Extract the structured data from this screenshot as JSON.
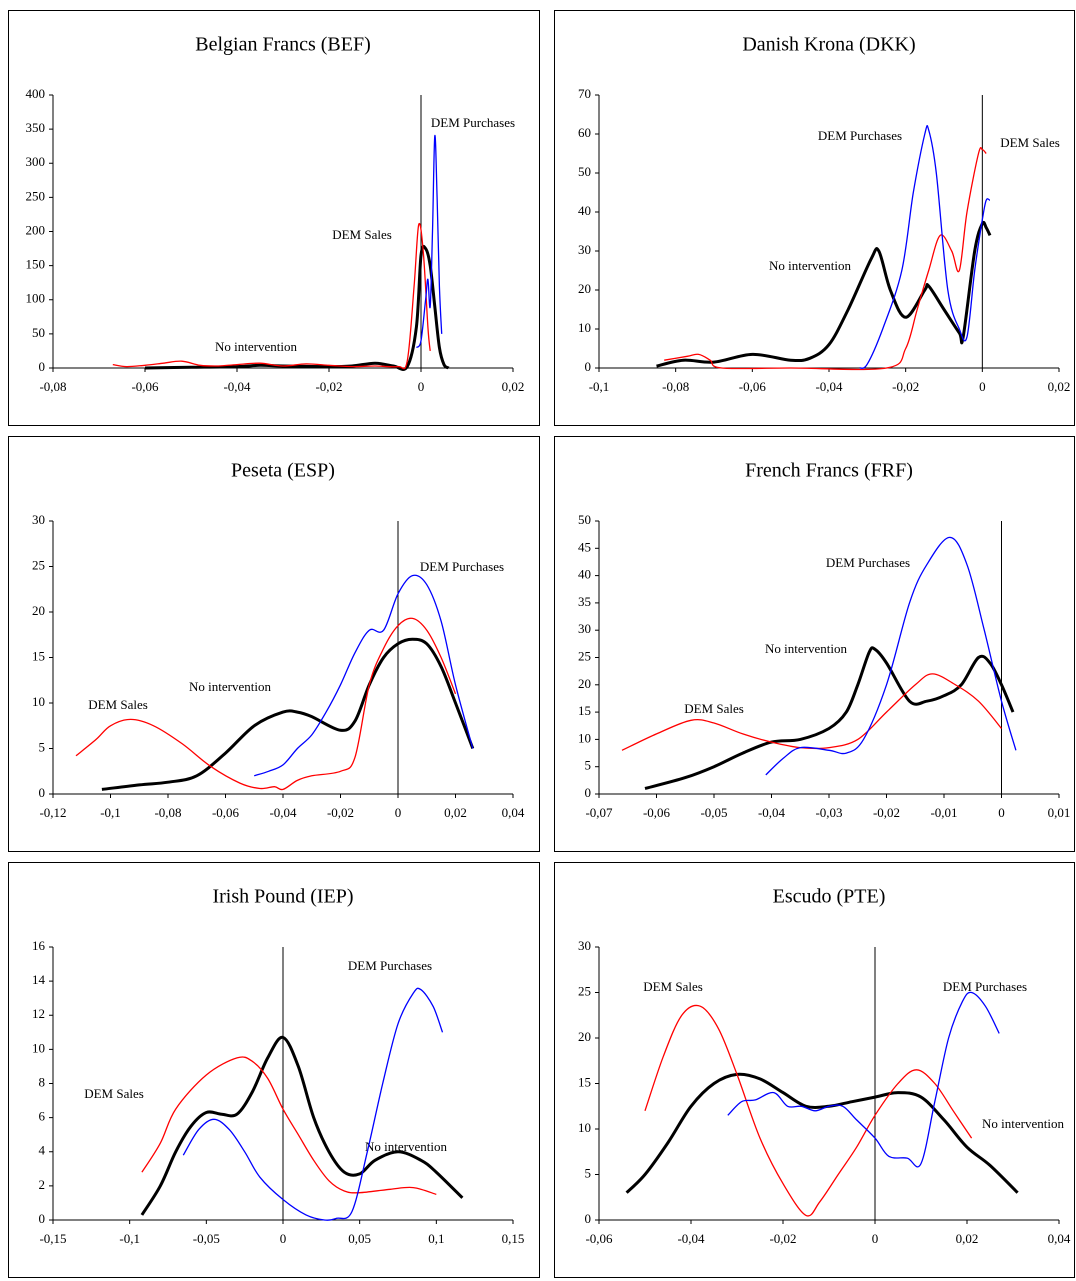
{
  "chart_data": [
    {
      "type": "line",
      "title": "Belgian Francs (BEF)",
      "xlim": [
        -0.08,
        0.02
      ],
      "xticks": [
        {
          "value": -0.08,
          "label": "-0,08"
        },
        {
          "value": -0.06,
          "label": "-0,06"
        },
        {
          "value": -0.04,
          "label": "-0,04"
        },
        {
          "value": -0.02,
          "label": "-0,02"
        },
        0,
        {
          "value": 0.02,
          "label": "0,02"
        }
      ],
      "ylim": [
        0,
        400
      ],
      "yticks": [
        0,
        50,
        100,
        150,
        200,
        250,
        300,
        350,
        400
      ],
      "series": [
        {
          "name": "No intervention",
          "color": "#000000",
          "x": [
            -0.06,
            -0.05,
            -0.04,
            -0.035,
            -0.03,
            -0.02,
            -0.015,
            -0.01,
            -0.006,
            -0.003,
            -0.001,
            0,
            0.001,
            0.002,
            0.003,
            0.004,
            0.005,
            0.006
          ],
          "values": [
            0,
            1,
            2,
            4,
            3,
            2,
            3,
            7,
            3,
            2,
            60,
            165,
            175,
            150,
            90,
            30,
            5,
            0
          ]
        },
        {
          "name": "DEM Sales",
          "color": "#ff0000",
          "x": [
            -0.067,
            -0.064,
            -0.06,
            -0.056,
            -0.052,
            -0.048,
            -0.044,
            -0.04,
            -0.035,
            -0.03,
            -0.025,
            -0.02,
            -0.015,
            -0.01,
            -0.005,
            -0.003,
            -0.0015,
            -0.0005,
            0.0005,
            0.0015,
            0.002
          ],
          "values": [
            5,
            2,
            4,
            7,
            10,
            4,
            3,
            5,
            7,
            3,
            6,
            4,
            2,
            3,
            2,
            10,
            120,
            210,
            170,
            60,
            25
          ]
        },
        {
          "name": "DEM Purchases",
          "color": "#0000ff",
          "x": [
            -0.001,
            0,
            0.001,
            0.0015,
            0.002,
            0.0025,
            0.003,
            0.0035,
            0.004,
            0.0045
          ],
          "values": [
            30,
            40,
            100,
            130,
            90,
            200,
            340,
            250,
            120,
            50
          ]
        }
      ]
    },
    {
      "type": "line",
      "title": "Danish Krona (DKK)",
      "xlim": [
        -0.1,
        0.02
      ],
      "xticks": [
        {
          "value": -0.1,
          "label": "-0,1"
        },
        {
          "value": -0.08,
          "label": "-0,08"
        },
        {
          "value": -0.06,
          "label": "-0,06"
        },
        {
          "value": -0.04,
          "label": "-0,04"
        },
        {
          "value": -0.02,
          "label": "-0,02"
        },
        0,
        {
          "value": 0.02,
          "label": "0,02"
        }
      ],
      "ylim": [
        0,
        70
      ],
      "yticks": [
        0,
        10,
        20,
        30,
        40,
        50,
        60,
        70
      ],
      "series": [
        {
          "name": "No intervention",
          "color": "#000000",
          "x": [
            -0.085,
            -0.078,
            -0.07,
            -0.06,
            -0.05,
            -0.045,
            -0.04,
            -0.035,
            -0.029,
            -0.027,
            -0.024,
            -0.02,
            -0.015,
            -0.014,
            -0.01,
            -0.006,
            -0.005,
            -0.002,
            0,
            0.001,
            0.002
          ],
          "values": [
            0.5,
            2,
            1.5,
            3.5,
            2,
            2.5,
            6,
            15,
            28,
            30,
            20,
            13,
            20,
            21,
            15,
            9,
            8,
            30,
            37,
            36,
            34
          ]
        },
        {
          "name": "DEM Sales",
          "color": "#ff0000",
          "x": [
            -0.083,
            -0.077,
            -0.074,
            -0.071,
            -0.068,
            -0.05,
            -0.025,
            -0.02,
            -0.017,
            -0.014,
            -0.011,
            -0.008,
            -0.006,
            -0.004,
            -0.001,
            0,
            0.001
          ],
          "values": [
            2,
            3,
            3.5,
            2,
            0,
            0,
            0,
            5,
            15,
            25,
            34,
            30,
            25,
            40,
            55,
            56,
            55
          ]
        },
        {
          "name": "DEM Purchases",
          "color": "#0000ff",
          "x": [
            -0.032,
            -0.03,
            -0.026,
            -0.021,
            -0.018,
            -0.015,
            -0.014,
            -0.012,
            -0.009,
            -0.006,
            -0.004,
            -0.002,
            0,
            0.001,
            0.002
          ],
          "values": [
            0,
            1,
            10,
            25,
            45,
            60,
            61,
            50,
            20,
            10,
            8,
            25,
            38,
            43,
            43
          ]
        }
      ]
    },
    {
      "type": "line",
      "title": "Peseta (ESP)",
      "xlim": [
        -0.12,
        0.04
      ],
      "xticks": [
        {
          "value": -0.12,
          "label": "-0,12"
        },
        {
          "value": -0.1,
          "label": "-0,1"
        },
        {
          "value": -0.08,
          "label": "-0,08"
        },
        {
          "value": -0.06,
          "label": "-0,06"
        },
        {
          "value": -0.04,
          "label": "-0,04"
        },
        {
          "value": -0.02,
          "label": "-0,02"
        },
        0,
        {
          "value": 0.02,
          "label": "0,02"
        },
        {
          "value": 0.04,
          "label": "0,04"
        }
      ],
      "ylim": [
        0,
        30
      ],
      "yticks": [
        0,
        5,
        10,
        15,
        20,
        25,
        30
      ],
      "series": [
        {
          "name": "No intervention",
          "color": "#000000",
          "x": [
            -0.103,
            -0.09,
            -0.08,
            -0.07,
            -0.06,
            -0.05,
            -0.04,
            -0.035,
            -0.03,
            -0.02,
            -0.015,
            -0.01,
            -0.005,
            0,
            0.005,
            0.01,
            0.015,
            0.02,
            0.026
          ],
          "values": [
            0.5,
            1,
            1.3,
            2,
            4.5,
            7.5,
            9,
            9,
            8.5,
            7,
            8,
            12,
            15,
            16.5,
            17,
            16.5,
            14,
            10,
            5
          ]
        },
        {
          "name": "DEM Sales",
          "color": "#ff0000",
          "x": [
            -0.112,
            -0.105,
            -0.1,
            -0.093,
            -0.085,
            -0.075,
            -0.065,
            -0.055,
            -0.048,
            -0.043,
            -0.04,
            -0.035,
            -0.03,
            -0.02,
            -0.015,
            -0.01,
            -0.005,
            0,
            0.005,
            0.01,
            0.015,
            0.02
          ],
          "values": [
            4.2,
            6,
            7.5,
            8.2,
            7.5,
            5.5,
            3,
            1.2,
            0.6,
            0.8,
            0.5,
            1.5,
            2,
            2.5,
            4,
            12,
            16,
            18.5,
            19.3,
            18,
            15,
            11
          ]
        },
        {
          "name": "DEM Purchases",
          "color": "#0000ff",
          "x": [
            -0.05,
            -0.045,
            -0.04,
            -0.035,
            -0.03,
            -0.025,
            -0.02,
            -0.015,
            -0.01,
            -0.005,
            0,
            0.005,
            0.01,
            0.015,
            0.02,
            0.026
          ],
          "values": [
            2,
            2.5,
            3.2,
            5,
            6.5,
            9,
            12,
            15.5,
            18,
            18,
            22,
            24,
            23,
            19,
            12,
            5
          ]
        }
      ]
    },
    {
      "type": "line",
      "title": "French Francs (FRF)",
      "xlim": [
        -0.07,
        0.01
      ],
      "xticks": [
        {
          "value": -0.07,
          "label": "-0,07"
        },
        {
          "value": -0.06,
          "label": "-0,06"
        },
        {
          "value": -0.05,
          "label": "-0,05"
        },
        {
          "value": -0.04,
          "label": "-0,04"
        },
        {
          "value": -0.03,
          "label": "-0,03"
        },
        {
          "value": -0.02,
          "label": "-0,02"
        },
        {
          "value": -0.01,
          "label": "-0,01"
        },
        0,
        {
          "value": 0.01,
          "label": "0,01"
        }
      ],
      "ylim": [
        0,
        50
      ],
      "yticks": [
        0,
        5,
        10,
        15,
        20,
        25,
        30,
        35,
        40,
        45,
        50
      ],
      "series": [
        {
          "name": "No intervention",
          "color": "#000000",
          "x": [
            -0.062,
            -0.055,
            -0.05,
            -0.045,
            -0.04,
            -0.035,
            -0.03,
            -0.027,
            -0.025,
            -0.023,
            -0.022,
            -0.02,
            -0.016,
            -0.013,
            -0.01,
            -0.007,
            -0.004,
            -0.002,
            0,
            0.002
          ],
          "values": [
            1,
            3,
            5,
            7.5,
            9.5,
            10,
            12,
            15,
            20,
            26,
            26.5,
            24,
            17,
            17,
            18,
            20,
            25,
            24,
            20,
            15
          ]
        },
        {
          "name": "DEM Sales",
          "color": "#ff0000",
          "x": [
            -0.066,
            -0.06,
            -0.054,
            -0.05,
            -0.045,
            -0.04,
            -0.035,
            -0.03,
            -0.025,
            -0.02,
            -0.015,
            -0.012,
            -0.008,
            -0.004,
            0
          ],
          "values": [
            8,
            11,
            13.5,
            13,
            11,
            9.5,
            8.5,
            8.5,
            10,
            15,
            20,
            22,
            20,
            17,
            12
          ]
        },
        {
          "name": "DEM Purchases",
          "color": "#0000ff",
          "x": [
            -0.041,
            -0.038,
            -0.035,
            -0.03,
            -0.027,
            -0.024,
            -0.02,
            -0.016,
            -0.013,
            -0.009,
            -0.006,
            -0.003,
            0,
            0.0025
          ],
          "values": [
            3.5,
            6.5,
            8.5,
            8,
            7.5,
            10,
            20,
            35,
            42,
            47,
            42,
            30,
            17,
            8
          ]
        }
      ]
    },
    {
      "type": "line",
      "title": "Irish Pound (IEP)",
      "xlim": [
        -0.15,
        0.15
      ],
      "xticks": [
        {
          "value": -0.15,
          "label": "-0,15"
        },
        {
          "value": -0.1,
          "label": "-0,1"
        },
        {
          "value": -0.05,
          "label": "-0,05"
        },
        0,
        {
          "value": 0.05,
          "label": "0,05"
        },
        {
          "value": 0.1,
          "label": "0,1"
        },
        {
          "value": 0.15,
          "label": "0,15"
        }
      ],
      "ylim": [
        0,
        16
      ],
      "yticks": [
        0,
        2,
        4,
        6,
        8,
        10,
        12,
        14,
        16
      ],
      "series": [
        {
          "name": "No intervention",
          "color": "#000000",
          "x": [
            -0.092,
            -0.08,
            -0.07,
            -0.06,
            -0.05,
            -0.04,
            -0.03,
            -0.02,
            -0.01,
            0,
            0.01,
            0.02,
            0.03,
            0.04,
            0.05,
            0.06,
            0.075,
            0.09,
            0.1,
            0.117
          ],
          "values": [
            0.3,
            2,
            4,
            5.5,
            6.3,
            6.2,
            6.2,
            7.5,
            9.5,
            10.7,
            9,
            6,
            4,
            2.8,
            2.7,
            3.5,
            4,
            3.5,
            2.8,
            1.3
          ]
        },
        {
          "name": "DEM Sales",
          "color": "#ff0000",
          "x": [
            -0.092,
            -0.08,
            -0.07,
            -0.05,
            -0.03,
            -0.02,
            -0.01,
            0,
            0.01,
            0.02,
            0.03,
            0.04,
            0.05,
            0.07,
            0.085,
            0.1
          ],
          "values": [
            2.8,
            4.5,
            6.5,
            8.5,
            9.5,
            9.3,
            8.3,
            6.5,
            5,
            3.5,
            2.3,
            1.7,
            1.6,
            1.8,
            1.9,
            1.5
          ]
        },
        {
          "name": "DEM Purchases",
          "color": "#0000ff",
          "x": [
            -0.065,
            -0.055,
            -0.045,
            -0.035,
            -0.025,
            -0.015,
            0,
            0.015,
            0.027,
            0.035,
            0.045,
            0.055,
            0.065,
            0.075,
            0.085,
            0.09,
            0.098,
            0.104
          ],
          "values": [
            3.8,
            5.3,
            5.9,
            5.3,
            4,
            2.5,
            1.2,
            0.3,
            0,
            0.1,
            0.5,
            4,
            8,
            11.5,
            13.3,
            13.5,
            12.5,
            11
          ]
        }
      ]
    },
    {
      "type": "line",
      "title": "Escudo (PTE)",
      "xlim": [
        -0.06,
        0.04
      ],
      "xticks": [
        {
          "value": -0.06,
          "label": "-0,06"
        },
        {
          "value": -0.04,
          "label": "-0,04"
        },
        {
          "value": -0.02,
          "label": "-0,02"
        },
        0,
        {
          "value": 0.02,
          "label": "0,02"
        },
        {
          "value": 0.04,
          "label": "0,04"
        }
      ],
      "ylim": [
        0,
        30
      ],
      "yticks": [
        0,
        5,
        10,
        15,
        20,
        25,
        30
      ],
      "series": [
        {
          "name": "No intervention",
          "color": "#000000",
          "x": [
            -0.054,
            -0.05,
            -0.045,
            -0.04,
            -0.035,
            -0.03,
            -0.025,
            -0.02,
            -0.015,
            -0.01,
            -0.005,
            0,
            0.005,
            0.01,
            0.015,
            0.02,
            0.025,
            0.031
          ],
          "values": [
            3,
            5,
            8.5,
            12.5,
            15,
            16,
            15.5,
            14,
            12.5,
            12.5,
            13,
            13.5,
            14,
            13.5,
            11,
            8,
            6,
            3
          ]
        },
        {
          "name": "DEM Sales",
          "color": "#ff0000",
          "x": [
            -0.05,
            -0.046,
            -0.042,
            -0.038,
            -0.034,
            -0.03,
            -0.025,
            -0.02,
            -0.015,
            -0.012,
            -0.008,
            -0.004,
            0,
            0.005,
            0.009,
            0.013,
            0.017,
            0.021
          ],
          "values": [
            12,
            18,
            22.5,
            23.5,
            21,
            16,
            9,
            4,
            0.5,
            2,
            5,
            8,
            11.5,
            15,
            16.5,
            15,
            12,
            9
          ]
        },
        {
          "name": "DEM Purchases",
          "color": "#0000ff",
          "x": [
            -0.032,
            -0.029,
            -0.026,
            -0.022,
            -0.019,
            -0.016,
            -0.013,
            -0.01,
            -0.007,
            -0.004,
            0,
            0.003,
            0.007,
            0.01,
            0.013,
            0.016,
            0.019,
            0.021,
            0.024,
            0.027
          ],
          "values": [
            11.5,
            13,
            13.2,
            14,
            12.5,
            12.5,
            12,
            12.5,
            12.5,
            11,
            9,
            7,
            6.8,
            6.2,
            13,
            20,
            24,
            25,
            23.5,
            20.5
          ]
        }
      ]
    }
  ]
}
